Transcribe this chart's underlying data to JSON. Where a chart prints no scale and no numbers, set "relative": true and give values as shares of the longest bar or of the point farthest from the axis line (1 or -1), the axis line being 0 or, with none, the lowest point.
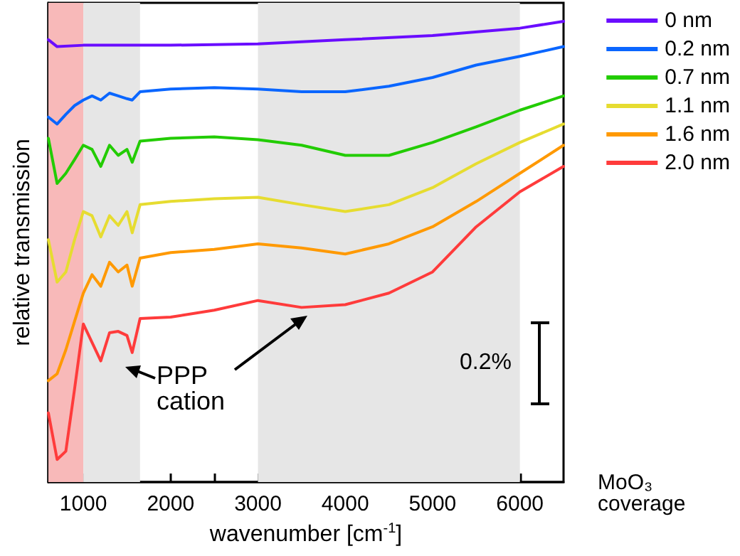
{
  "chart_data": {
    "type": "line",
    "relative": true,
    "xlabel": "wavenumber [cm$^{-1}$]",
    "ylabel": "relative transmission",
    "legend_title": "MoO₃ coverage",
    "legend": "right",
    "x": [
      600,
      700,
      800,
      900,
      1000,
      1100,
      1200,
      1300,
      1400,
      1500,
      1560,
      1650,
      2000,
      2500,
      3000,
      3500,
      4000,
      4500,
      5000,
      5500,
      6000,
      6500
    ],
    "xlim": [
      600,
      6500
    ],
    "xticks": [
      1000,
      {
        "value": 1500,
        "label": null
      },
      2000,
      {
        "value": 2500,
        "label": null
      },
      3000,
      {
        "value": 3500,
        "label": null
      },
      4000,
      {
        "value": 4500,
        "label": null
      },
      5000,
      {
        "value": 5500,
        "label": null
      },
      6000
    ],
    "grid": false,
    "marker": "none",
    "line_style": "solid",
    "series": [
      {
        "name": "0 nm",
        "color": "#6a0dff",
        "x": [
          600,
          700,
          1000,
          2000,
          3000,
          4000,
          5000,
          6000,
          6500
        ],
        "values": [
          0.96,
          0.945,
          0.948,
          0.948,
          0.951,
          0.96,
          0.969,
          0.985,
          1
        ]
      },
      {
        "name": "0.2 nm",
        "color": "#0a66ff",
        "values": [
          0.792,
          0.777,
          0.798,
          0.817,
          0.829,
          0.838,
          0.829,
          0.844,
          0.838,
          0.832,
          0.829,
          0.847,
          0.853,
          0.856,
          0.853,
          0.847,
          0.847,
          0.859,
          0.878,
          0.905,
          0.924,
          0.945
        ]
      },
      {
        "name": "0.7 nm",
        "color": "#22cc00",
        "values": [
          0.746,
          0.648,
          0.67,
          0.7,
          0.731,
          0.722,
          0.685,
          0.731,
          0.709,
          0.722,
          0.694,
          0.74,
          0.746,
          0.749,
          0.743,
          0.731,
          0.709,
          0.709,
          0.737,
          0.771,
          0.807,
          0.838
        ]
      },
      {
        "name": "1.1 nm",
        "color": "#e6dc30",
        "values": [
          0.526,
          0.434,
          0.456,
          0.526,
          0.587,
          0.578,
          0.532,
          0.578,
          0.557,
          0.587,
          0.541,
          0.602,
          0.609,
          0.615,
          0.618,
          0.602,
          0.587,
          0.602,
          0.639,
          0.691,
          0.737,
          0.777
        ]
      },
      {
        "name": "1.6 nm",
        "color": "#ff9900",
        "values": [
          0.22,
          0.235,
          0.287,
          0.349,
          0.41,
          0.45,
          0.425,
          0.477,
          0.456,
          0.471,
          0.425,
          0.486,
          0.498,
          0.505,
          0.517,
          0.508,
          0.495,
          0.517,
          0.554,
          0.609,
          0.67,
          0.731
        ]
      },
      {
        "name": "2.0 nm",
        "color": "#ff3b3b",
        "values": [
          0.15,
          0.049,
          0.067,
          0.202,
          0.343,
          0.303,
          0.263,
          0.324,
          0.327,
          0.318,
          0.281,
          0.355,
          0.358,
          0.373,
          0.394,
          0.379,
          0.385,
          0.41,
          0.456,
          0.554,
          0.63,
          0.685
        ]
      }
    ],
    "bands": [
      {
        "axis": "x",
        "from": 600,
        "to": 1000,
        "color": "#f8b9b9"
      },
      {
        "axis": "x",
        "from": 1000,
        "to": 1650,
        "color": "#e6e6e6"
      },
      {
        "axis": "x",
        "from": 3000,
        "to": 6000,
        "color": "#e6e6e6"
      }
    ],
    "annotations": [
      "PPP cation",
      "0.2%"
    ]
  }
}
